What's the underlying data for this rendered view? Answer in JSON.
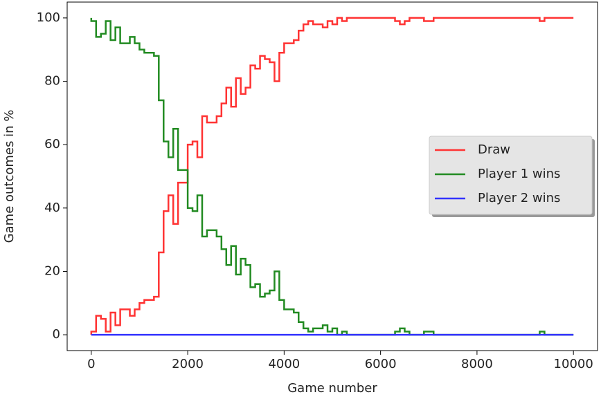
{
  "chart_data": {
    "type": "step",
    "x": [
      0,
      100,
      200,
      300,
      400,
      500,
      600,
      700,
      800,
      900,
      1000,
      1100,
      1200,
      1300,
      1400,
      1500,
      1600,
      1700,
      1800,
      1900,
      2000,
      2100,
      2200,
      2300,
      2400,
      2500,
      2600,
      2700,
      2800,
      2900,
      3000,
      3100,
      3200,
      3300,
      3400,
      3500,
      3600,
      3700,
      3800,
      3900,
      4000,
      4100,
      4200,
      4300,
      4400,
      4500,
      4600,
      4700,
      4800,
      4900,
      5000,
      5100,
      5200,
      5300,
      5400,
      5500,
      5600,
      5700,
      5800,
      5900,
      6000,
      6100,
      6200,
      6300,
      6400,
      6500,
      6600,
      6700,
      6800,
      6900,
      7000,
      7100,
      7200,
      7300,
      7400,
      7500,
      7600,
      7700,
      7800,
      7900,
      8000,
      8100,
      8200,
      8300,
      8400,
      8500,
      8600,
      8700,
      8800,
      8900,
      9000,
      9100,
      9200,
      9300,
      9400,
      9500,
      9600,
      9700,
      9800,
      9900,
      10000
    ],
    "series": [
      {
        "name": "Draw",
        "color": "#ff3333",
        "values": [
          0,
          1,
          6,
          5,
          1,
          7,
          3,
          8,
          8,
          6,
          8,
          10,
          11,
          11,
          12,
          26,
          39,
          44,
          35,
          48,
          48,
          60,
          61,
          56,
          69,
          67,
          67,
          69,
          73,
          78,
          72,
          81,
          76,
          78,
          85,
          84,
          88,
          87,
          86,
          80,
          89,
          92,
          92,
          93,
          96,
          98,
          99,
          98,
          98,
          97,
          99,
          98,
          100,
          99,
          100,
          100,
          100,
          100,
          100,
          100,
          100,
          100,
          100,
          100,
          99,
          98,
          99,
          100,
          100,
          100,
          99,
          99,
          100,
          100,
          100,
          100,
          100,
          100,
          100,
          100,
          100,
          100,
          100,
          100,
          100,
          100,
          100,
          100,
          100,
          100,
          100,
          100,
          100,
          100,
          99,
          100,
          100,
          100,
          100,
          100,
          100
        ]
      },
      {
        "name": "Player 1 wins",
        "color": "#228b22",
        "values": [
          100,
          99,
          94,
          95,
          99,
          93,
          97,
          92,
          92,
          94,
          92,
          90,
          89,
          89,
          88,
          74,
          61,
          56,
          65,
          52,
          52,
          40,
          39,
          44,
          31,
          33,
          33,
          31,
          27,
          22,
          28,
          19,
          24,
          22,
          15,
          16,
          12,
          13,
          14,
          20,
          11,
          8,
          8,
          7,
          4,
          2,
          1,
          2,
          2,
          3,
          1,
          2,
          0,
          1,
          0,
          0,
          0,
          0,
          0,
          0,
          0,
          0,
          0,
          0,
          1,
          2,
          1,
          0,
          0,
          0,
          1,
          1,
          0,
          0,
          0,
          0,
          0,
          0,
          0,
          0,
          0,
          0,
          0,
          0,
          0,
          0,
          0,
          0,
          0,
          0,
          0,
          0,
          0,
          0,
          1,
          0,
          0,
          0,
          0,
          0,
          0
        ]
      },
      {
        "name": "Player 2 wins",
        "color": "#3333ff",
        "values": [
          0,
          0,
          0,
          0,
          0,
          0,
          0,
          0,
          0,
          0,
          0,
          0,
          0,
          0,
          0,
          0,
          0,
          0,
          0,
          0,
          0,
          0,
          0,
          0,
          0,
          0,
          0,
          0,
          0,
          0,
          0,
          0,
          0,
          0,
          0,
          0,
          0,
          0,
          0,
          0,
          0,
          0,
          0,
          0,
          0,
          0,
          0,
          0,
          0,
          0,
          0,
          0,
          0,
          0,
          0,
          0,
          0,
          0,
          0,
          0,
          0,
          0,
          0,
          0,
          0,
          0,
          0,
          0,
          0,
          0,
          0,
          0,
          0,
          0,
          0,
          0,
          0,
          0,
          0,
          0,
          0,
          0,
          0,
          0,
          0,
          0,
          0,
          0,
          0,
          0,
          0,
          0,
          0,
          0,
          0,
          0,
          0,
          0,
          0,
          0,
          0
        ]
      }
    ],
    "x_label": "Game number",
    "y_label": "Game outcomes in %",
    "xlim": [
      -500,
      10500
    ],
    "ylim": [
      -5,
      105
    ],
    "xticks": [
      0,
      2000,
      4000,
      6000,
      8000,
      10000
    ],
    "yticks": [
      0,
      20,
      40,
      60,
      80,
      100
    ],
    "legend": "right"
  }
}
